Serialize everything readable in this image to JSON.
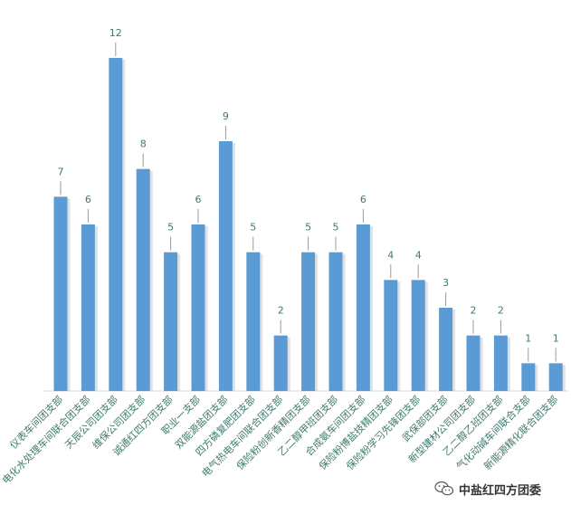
{
  "chart_data": {
    "type": "bar",
    "categories": [
      "仪表车间团支部",
      "电化水处理车间联合团支部",
      "天辰公司团支部",
      "维保公司团支部",
      "诚通红四方团支部",
      "职业一支部",
      "双能源盐团支部",
      "四方磷复肥团支部",
      "电气热电车间联合团支部",
      "保险粉创新香精团支部",
      "乙二醇甲班团支部",
      "合成氨车间团支部",
      "保险粉博盐技精团支部",
      "保险粉学习先锋团支部",
      "武保部团支部",
      "新型建材公司团支部",
      "乙二醇乙班团支部",
      "气化动碱车间联合支部",
      "新能源精化联合团支部"
    ],
    "values": [
      7,
      6,
      12,
      8,
      5,
      6,
      9,
      5,
      2,
      5,
      5,
      6,
      4,
      4,
      3,
      2,
      2,
      1,
      1
    ],
    "ylim": [
      0,
      12
    ],
    "grid": false,
    "legend": "none",
    "colors": {
      "bar": "#5b9bd5",
      "label": "#3f7a6e"
    }
  },
  "watermark": {
    "icon": "wechat-icon",
    "text": "中盐红四方团委"
  }
}
